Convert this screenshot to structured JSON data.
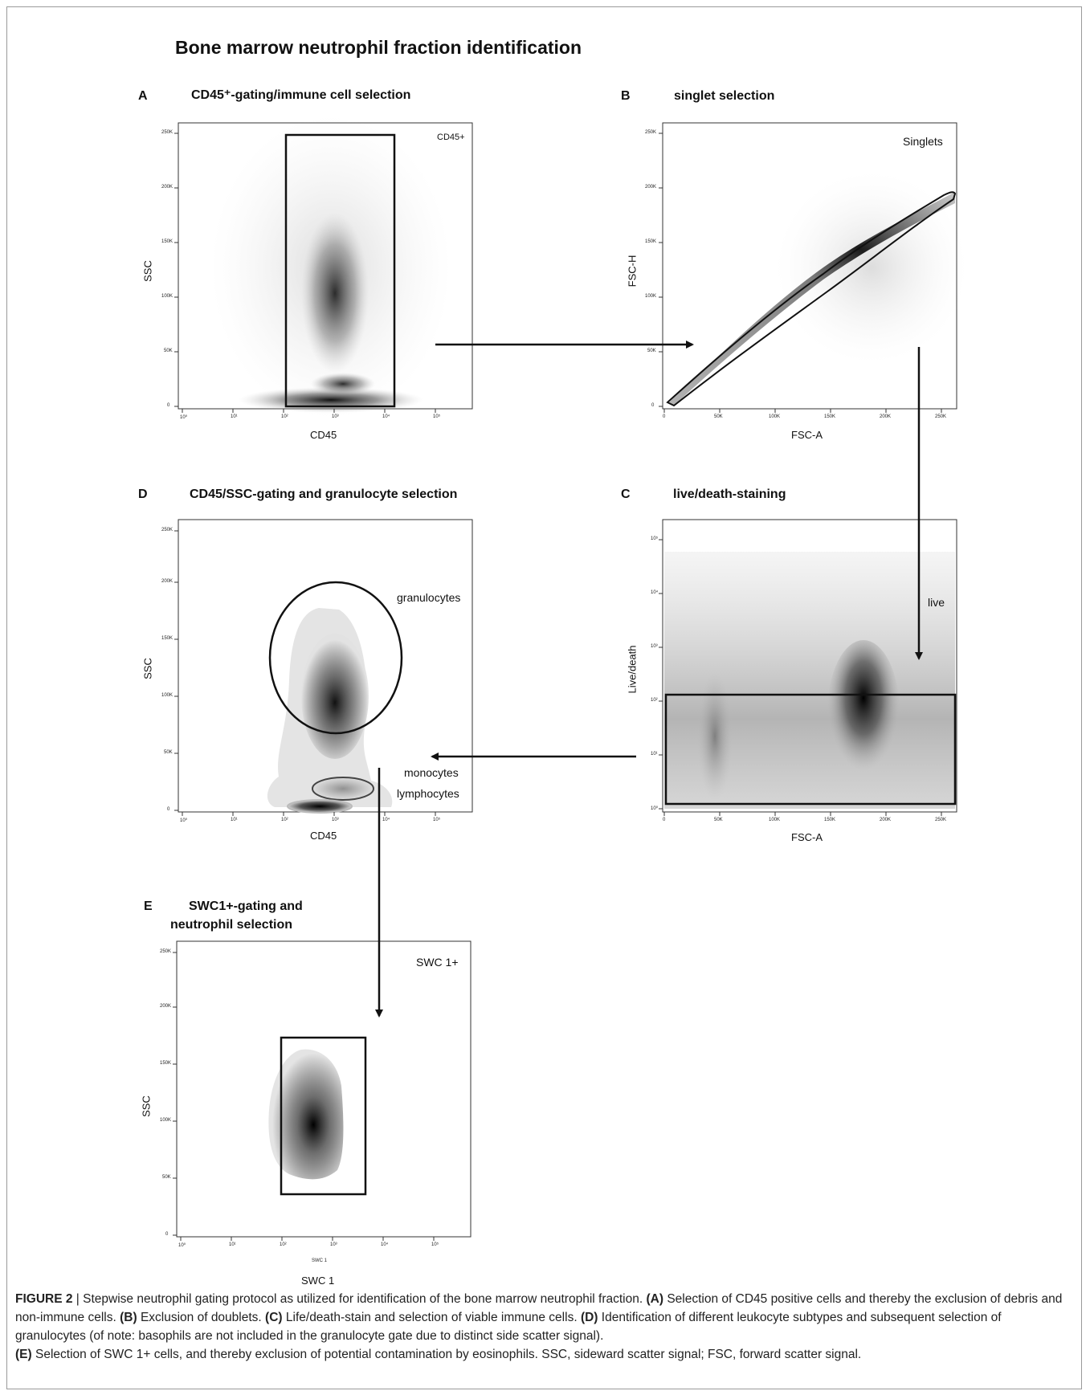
{
  "figure_title": "Bone marrow neutrophil fraction identification",
  "panels": {
    "A": {
      "letter": "A",
      "title": "CD45⁺-gating/immune cell selection",
      "xlabel": "CD45",
      "ylabel": "SSC",
      "gate": "CD45+",
      "xticks": [
        "10⁰",
        "10¹",
        "10²",
        "10³",
        "10⁴",
        "10⁵"
      ],
      "yticks": [
        "0",
        "50K",
        "100K",
        "150K",
        "200K",
        "250K"
      ]
    },
    "B": {
      "letter": "B",
      "title": "singlet selection",
      "xlabel": "FSC-A",
      "ylabel": "FSC-H",
      "gate": "Singlets",
      "xticks": [
        "0",
        "50K",
        "100K",
        "150K",
        "200K",
        "250K"
      ],
      "yticks": [
        "0",
        "50K",
        "100K",
        "150K",
        "200K",
        "250K"
      ]
    },
    "C": {
      "letter": "C",
      "title": "live/death-staining",
      "xlabel": "FSC-A",
      "ylabel": "Live/death",
      "gate": "live",
      "xticks": [
        "0",
        "50K",
        "100K",
        "150K",
        "200K",
        "250K"
      ],
      "yticks": [
        "10⁰",
        "10¹",
        "10²",
        "10³",
        "10⁴",
        "10⁵"
      ]
    },
    "D": {
      "letter": "D",
      "title": "CD45/SSC-gating and granulocyte selection",
      "xlabel": "CD45",
      "ylabel": "SSC",
      "gates": [
        "granulocytes",
        "monocytes",
        "lymphocytes"
      ],
      "xticks": [
        "10⁰",
        "10¹",
        "10²",
        "10³",
        "10⁴",
        "10⁵"
      ],
      "yticks": [
        "0",
        "50K",
        "100K",
        "150K",
        "200K",
        "250K"
      ]
    },
    "E": {
      "letter": "E",
      "title_line1": "SWC1+-gating and",
      "title_line2": "neutrophil selection",
      "xlabel": "SWC 1",
      "xlabel_small": "SWC 1",
      "ylabel": "SSC",
      "gate": "SWC 1+",
      "xticks": [
        "10⁰",
        "10¹",
        "10²",
        "10³",
        "10⁴",
        "10⁵"
      ],
      "yticks": [
        "0",
        "50K",
        "100K",
        "150K",
        "200K",
        "250K"
      ]
    }
  },
  "caption": {
    "figure_label": "FIGURE 2",
    "separator": " | ",
    "intro": "Stepwise neutrophil gating protocol as utilized for identification of the bone marrow neutrophil fraction.",
    "items": [
      {
        "tag": "(A)",
        "text": "Selection of CD45 positive cells and thereby the exclusion of debris and non-immune cells."
      },
      {
        "tag": "(B)",
        "text": "Exclusion of doublets."
      },
      {
        "tag": "(C)",
        "text": "Life/death-stain and selection of viable immune cells."
      },
      {
        "tag": "(D)",
        "text": "Identification of different leukocyte subtypes and subsequent selection of granulocytes (of note: basophils are not included in the granulocyte gate due to distinct side scatter signal)."
      },
      {
        "tag": "(E)",
        "text": "Selection of SWC 1+ cells, and thereby exclusion of potential contamination by eosinophils. SSC, sideward scatter signal; FSC, forward scatter signal."
      }
    ]
  },
  "colors": {
    "ink": "#111111",
    "frame": "#9a9a9a",
    "density": "#222222"
  }
}
